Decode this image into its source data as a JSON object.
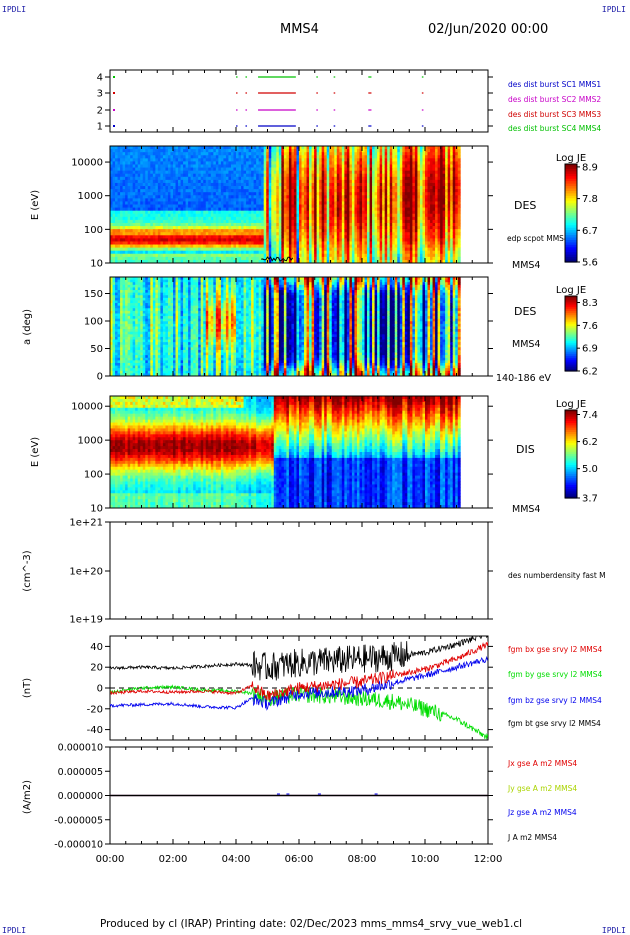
{
  "header": {
    "corner_tl": "IPDLI",
    "corner_tr": "IPDLI",
    "corner_bl": "IPDLI",
    "corner_br": "IPDLI",
    "spacecraft": "MMS4",
    "datetime": "02/Jun/2020 00:00"
  },
  "footer": {
    "text": "Produced by cl (IRAP)   Printing date: 02/Dec/2023   mms_mms4_srvy_vue_web1.cl"
  },
  "colors": {
    "c1": "#0000c8",
    "c2": "#c800c8",
    "c3": "#d00000",
    "c4": "#00c000",
    "bx": "#e00000",
    "by": "#00dd00",
    "bz": "#0000ee",
    "bt": "#000000",
    "jx": "#e00000",
    "jy": "#aad400",
    "jz": "#0000ee",
    "j": "#000000"
  },
  "chart_data": [
    {
      "id": "availability",
      "type": "scatter",
      "yticks": [
        "1",
        "2",
        "3",
        "4"
      ],
      "legend": [
        "des dist burst SC1 MMS1",
        "des dist burst SC2 MMS2",
        "des dist burst SC3 MMS3",
        "des dist burst SC4 MMS4"
      ],
      "segments_hours": [
        [
          0.1,
          0.12
        ],
        [
          4.0,
          4.05
        ],
        [
          4.3,
          4.35
        ],
        [
          4.7,
          5.9
        ],
        [
          6.55,
          6.6
        ],
        [
          7.1,
          7.15
        ],
        [
          8.2,
          8.3
        ],
        [
          9.9,
          9.95
        ]
      ]
    },
    {
      "id": "des-energy",
      "type": "heatmap",
      "ylabel": "E (eV)",
      "yticks": [
        "10",
        "100",
        "1000",
        "10000"
      ],
      "ylim": [
        10,
        30000
      ],
      "labels": [
        "DES",
        "edp scpot MMS4",
        "MMS4"
      ],
      "colorbar": {
        "title": "Log JE",
        "ticks": [
          "8.9",
          "7.8",
          "6.7",
          "5.6"
        ],
        "range": [
          5.6,
          9.0
        ]
      },
      "data_end_hours": 11.15
    },
    {
      "id": "des-pitch",
      "type": "heatmap",
      "ylabel": "a (deg)",
      "yticks": [
        "0",
        "50",
        "100",
        "150"
      ],
      "ylim": [
        0,
        180
      ],
      "labels": [
        "DES",
        "MMS4",
        "140-186 eV"
      ],
      "colorbar": {
        "title": "Log JE",
        "ticks": [
          "8.3",
          "7.6",
          "6.9",
          "6.2"
        ],
        "range": [
          6.2,
          8.5
        ]
      },
      "data_end_hours": 11.15
    },
    {
      "id": "dis-energy",
      "type": "heatmap",
      "ylabel": "E (eV)",
      "yticks": [
        "10",
        "100",
        "1000",
        "10000"
      ],
      "ylim": [
        10,
        20000
      ],
      "labels": [
        "DIS",
        "MMS4"
      ],
      "colorbar": {
        "title": "Log JE",
        "ticks": [
          "7.4",
          "6.2",
          "5.0",
          "3.7"
        ],
        "range": [
          3.7,
          7.6
        ]
      },
      "data_end_hours": 11.15
    },
    {
      "id": "density",
      "type": "line",
      "ylabel": "(cm^-3)",
      "yticks": [
        "1e+19",
        "1e+20",
        "1e+21"
      ],
      "ylim": [
        1e+19,
        1e+21
      ],
      "labels": [
        "des numberdensity fast M"
      ]
    },
    {
      "id": "fgm",
      "type": "line",
      "ylabel": "(nT)",
      "yticks": [
        "-40",
        "-20",
        "0",
        "20",
        "40"
      ],
      "ylim": [
        -50,
        50
      ],
      "legend": [
        "fgm bx gse srvy l2 MMS4",
        "fgm by gse srvy l2 MMS4",
        "fgm bz gse srvy l2 MMS4",
        "fgm bt gse srvy l2 MMS4"
      ],
      "series": [
        {
          "name": "fgm bx gse srvy l2 MMS4",
          "x": [
            0,
            1,
            2,
            3,
            4,
            4.5,
            5,
            6,
            7,
            8,
            9,
            10,
            11,
            12
          ],
          "values": [
            -5,
            -3,
            -4,
            -3,
            -5,
            2,
            -8,
            0,
            3,
            6,
            12,
            18,
            28,
            42
          ]
        },
        {
          "name": "fgm by gse srvy l2 MMS4",
          "x": [
            0,
            1,
            2,
            3,
            4,
            4.5,
            5,
            6,
            7,
            8,
            9,
            10,
            11,
            12
          ],
          "values": [
            -4,
            0,
            1,
            -2,
            -3,
            -5,
            -10,
            -6,
            -8,
            -10,
            -13,
            -20,
            -30,
            -48
          ]
        },
        {
          "name": "fgm bz gse srvy l2 MMS4",
          "x": [
            0,
            1,
            2,
            3,
            4,
            4.5,
            5,
            6,
            7,
            8,
            9,
            10,
            11,
            12
          ],
          "values": [
            -17,
            -16,
            -15,
            -18,
            -19,
            -10,
            -15,
            -5,
            -4,
            -2,
            5,
            12,
            20,
            28
          ]
        },
        {
          "name": "fgm bt gse srvy l2 MMS4",
          "x": [
            0,
            1,
            2,
            3,
            4,
            4.5,
            5,
            6,
            7,
            8,
            9,
            10,
            11,
            12
          ],
          "values": [
            19,
            20,
            19,
            21,
            23,
            22,
            20,
            24,
            26,
            28,
            30,
            34,
            42,
            52
          ]
        }
      ]
    },
    {
      "id": "current",
      "type": "line",
      "ylabel": "(A/m2)",
      "yticks": [
        "-0.000010",
        "-0.000005",
        "0.000000",
        "0.000005",
        "0.000010"
      ],
      "ylim": [
        -1e-05,
        1e-05
      ],
      "legend": [
        "Jx gse A m2 MMS4",
        "Jy gse A m2 MMS4",
        "Jz gse A m2 MMS4",
        "J A m2 MMS4"
      ],
      "xticks": [
        "00:00",
        "02:00",
        "04:00",
        "06:00",
        "08:00",
        "10:00",
        "12:00"
      ],
      "xlim": [
        0,
        12
      ]
    }
  ]
}
